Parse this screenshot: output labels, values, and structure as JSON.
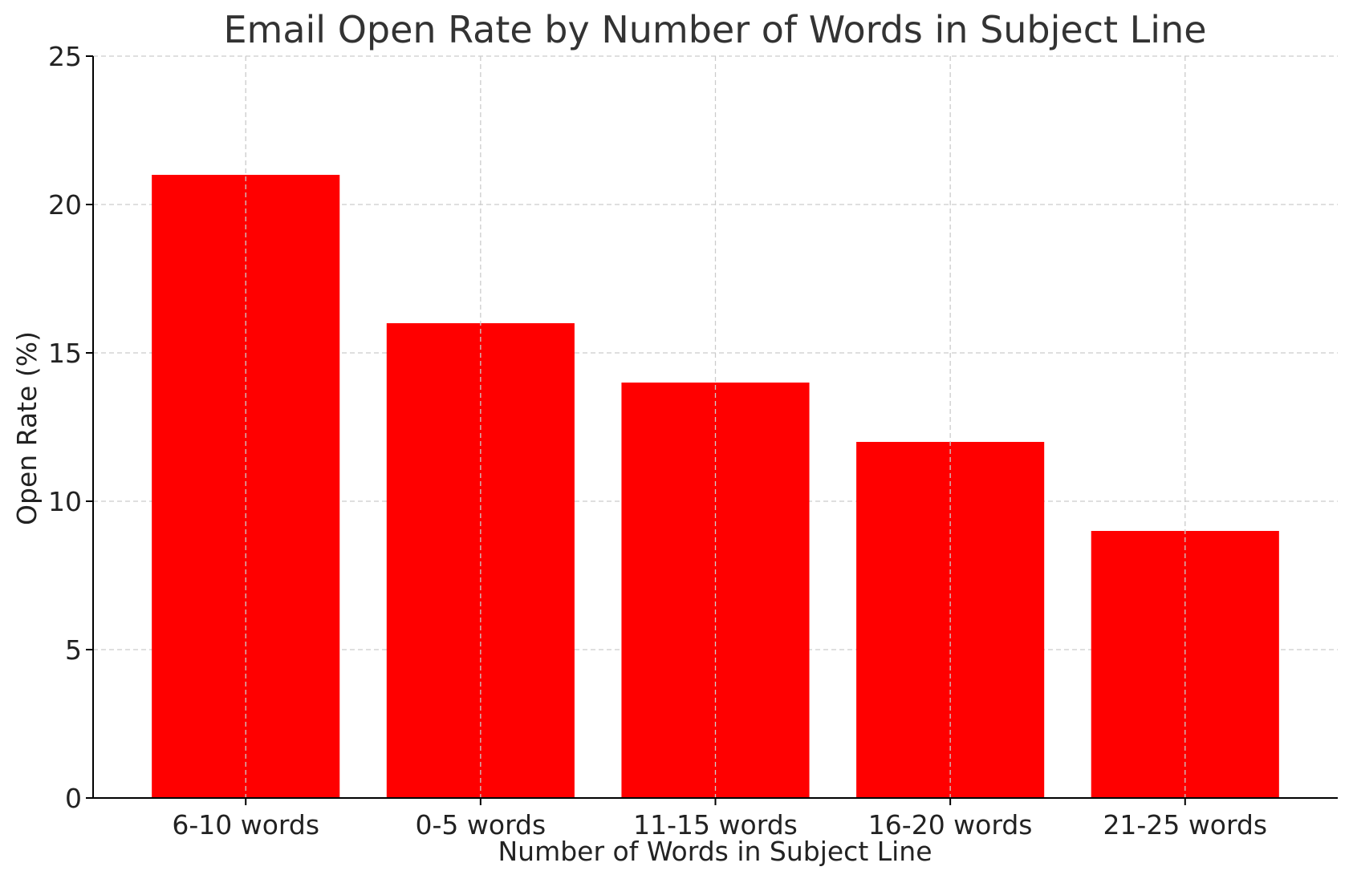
{
  "chart_data": {
    "type": "bar",
    "title": "Email Open Rate by Number of Words in Subject Line",
    "xlabel": "Number of Words in Subject Line",
    "ylabel": "Open Rate (%)",
    "categories": [
      "6-10 words",
      "0-5 words",
      "11-15 words",
      "16-20 words",
      "21-25 words"
    ],
    "values": [
      21,
      16,
      14,
      12,
      9
    ],
    "ylim": [
      0,
      25
    ],
    "yticks": [
      0,
      5,
      10,
      15,
      20,
      25
    ],
    "grid": true,
    "bar_color": "#ff0000"
  }
}
